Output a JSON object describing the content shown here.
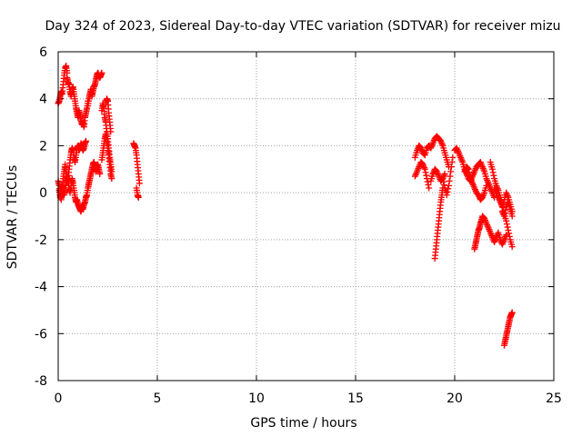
{
  "chart_data": {
    "type": "scatter",
    "title": "Day 324 of 2023, Sidereal Day-to-day VTEC variation (SDTVAR) for receiver mizu",
    "xlabel": "GPS time / hours",
    "ylabel": "SDTVAR / TECUs",
    "xlim": [
      0,
      25
    ],
    "ylim": [
      -8,
      6
    ],
    "x_ticks": [
      "0",
      "5",
      "10",
      "15",
      "20",
      "25"
    ],
    "y_ticks": [
      "-8",
      "-6",
      "-4",
      "-2",
      "0",
      "2",
      "4",
      "6"
    ],
    "grid": true,
    "marker": "+",
    "color": "#ff0000",
    "segments": [
      {
        "x": [
          0.0,
          0.05,
          0.1,
          0.15,
          0.2,
          0.25,
          0.3,
          0.35,
          0.4,
          0.45
        ],
        "y": [
          3.8,
          3.9,
          4.1,
          4.3,
          4.2,
          4.6,
          5.0,
          5.3,
          5.4,
          5.1
        ]
      },
      {
        "x": [
          0.45,
          0.5,
          0.55,
          0.6,
          0.65,
          0.7,
          0.75,
          0.8,
          0.85,
          0.9,
          0.95,
          1.0,
          1.05,
          1.1,
          1.15,
          1.2,
          1.25,
          1.3,
          1.35,
          1.4,
          1.45,
          1.5
        ],
        "y": [
          4.9,
          4.7,
          4.6,
          4.3,
          4.1,
          4.4,
          4.5,
          4.2,
          3.9,
          3.6,
          3.4,
          3.2,
          3.5,
          3.3,
          3.1,
          2.9,
          3.0,
          2.8,
          3.2,
          3.4,
          3.6,
          3.9
        ]
      },
      {
        "x": [
          1.5,
          1.55,
          1.6,
          1.65,
          1.7,
          1.75,
          1.8,
          1.85,
          1.9,
          1.95,
          2.0,
          2.05,
          2.1,
          2.15,
          2.2
        ],
        "y": [
          3.7,
          4.0,
          4.2,
          4.4,
          4.1,
          4.3,
          4.5,
          4.6,
          4.8,
          5.0,
          5.1,
          5.0,
          4.9,
          5.0,
          5.1
        ]
      },
      {
        "x": [
          0.0,
          0.05,
          0.1,
          0.15,
          0.2,
          0.25,
          0.3,
          0.35,
          0.4,
          0.45,
          0.5,
          0.55,
          0.6,
          0.65,
          0.7,
          0.75,
          0.8,
          0.85,
          0.9,
          0.95,
          1.0,
          1.05,
          1.1,
          1.15,
          1.2,
          1.25,
          1.3,
          1.35,
          1.4
        ],
        "y": [
          0.5,
          0.3,
          -0.1,
          -0.3,
          0.2,
          0.6,
          0.9,
          1.2,
          0.8,
          0.4,
          0.6,
          1.0,
          1.4,
          1.7,
          1.9,
          1.8,
          1.5,
          1.3,
          1.6,
          1.9,
          2.0,
          1.8,
          1.9,
          2.1,
          2.0,
          1.8,
          1.9,
          2.1,
          2.2
        ]
      },
      {
        "x": [
          0.05,
          0.1,
          0.15,
          0.2,
          0.25,
          0.3,
          0.35,
          0.4,
          0.45,
          0.5,
          0.55,
          0.6,
          0.65,
          0.7,
          0.75,
          0.8,
          0.85,
          0.9,
          0.95,
          1.0,
          1.05,
          1.1,
          1.15,
          1.2,
          1.25,
          1.3,
          1.35,
          1.4,
          1.45,
          1.5,
          1.55,
          1.6,
          1.65,
          1.7,
          1.75,
          1.8,
          1.85,
          1.9,
          1.95,
          2.0,
          2.05,
          2.1
        ],
        "y": [
          0.1,
          -0.2,
          0.0,
          0.3,
          0.2,
          -0.1,
          0.1,
          0.4,
          0.7,
          0.5,
          0.2,
          0.0,
          0.3,
          0.6,
          0.4,
          0.1,
          -0.2,
          -0.4,
          -0.3,
          -0.5,
          -0.6,
          -0.7,
          -0.8,
          -0.6,
          -0.7,
          -0.5,
          -0.4,
          -0.2,
          -0.1,
          0.2,
          0.4,
          0.6,
          0.8,
          1.0,
          1.2,
          1.3,
          1.1,
          0.9,
          1.1,
          1.2,
          1.0,
          0.8
        ]
      },
      {
        "x": [
          2.2,
          2.25,
          2.3,
          2.35,
          2.4,
          2.45,
          2.5,
          2.55,
          2.6,
          2.65,
          2.7
        ],
        "y": [
          3.5,
          3.8,
          3.6,
          3.2,
          3.0,
          2.6,
          2.3,
          1.9,
          1.5,
          1.2,
          0.9
        ]
      },
      {
        "x": [
          2.2,
          2.25,
          2.3,
          2.35,
          2.4,
          2.45,
          2.5,
          2.55,
          2.6,
          2.65,
          2.7
        ],
        "y": [
          1.4,
          1.7,
          2.0,
          2.3,
          2.5,
          2.2,
          1.9,
          1.6,
          1.2,
          0.8,
          0.6
        ]
      },
      {
        "x": [
          2.4,
          2.45,
          2.5,
          2.55,
          2.6,
          2.65
        ],
        "y": [
          3.8,
          4.0,
          3.9,
          3.4,
          3.0,
          2.6
        ]
      },
      {
        "x": [
          3.8,
          3.85,
          3.9,
          3.95,
          4.0,
          4.05,
          4.1
        ],
        "y": [
          2.1,
          2.0,
          1.9,
          1.6,
          1.2,
          0.8,
          0.4
        ]
      },
      {
        "x": [
          3.95,
          4.0,
          4.05
        ],
        "y": [
          0.2,
          -0.1,
          -0.2
        ]
      },
      {
        "x": [
          18.0,
          18.1,
          18.2,
          18.3,
          18.4,
          18.5,
          18.6,
          18.7,
          18.8,
          18.9,
          19.0,
          19.1,
          19.2,
          19.3,
          19.4,
          19.5,
          19.6,
          19.7
        ],
        "y": [
          1.5,
          1.8,
          2.0,
          1.9,
          1.7,
          1.6,
          1.9,
          2.0,
          1.9,
          2.1,
          2.3,
          2.4,
          2.3,
          2.2,
          2.0,
          1.7,
          1.4,
          1.1
        ]
      },
      {
        "x": [
          18.0,
          18.1,
          18.2,
          18.3,
          18.4,
          18.5,
          18.6,
          18.7
        ],
        "y": [
          0.7,
          0.9,
          1.1,
          1.3,
          1.2,
          1.0,
          0.6,
          0.2
        ]
      },
      {
        "x": [
          18.8,
          18.9,
          19.0,
          19.1,
          19.2,
          19.3,
          19.4,
          19.5
        ],
        "y": [
          0.5,
          0.8,
          1.0,
          0.9,
          0.7,
          0.5,
          0.6,
          0.8
        ]
      },
      {
        "x": [
          19.0,
          19.05,
          19.1,
          19.15,
          19.2,
          19.25,
          19.3,
          19.35,
          19.4
        ],
        "y": [
          -2.8,
          -2.4,
          -2.0,
          -1.6,
          -1.2,
          -0.8,
          -0.4,
          -0.1,
          0.2
        ]
      },
      {
        "x": [
          19.4,
          19.5,
          19.6,
          19.7,
          19.8,
          19.9
        ],
        "y": [
          0.6,
          0.2,
          -0.1,
          0.3,
          0.9,
          1.5
        ]
      },
      {
        "x": [
          20.0,
          20.1,
          20.2,
          20.3,
          20.4,
          20.5,
          20.6,
          20.7,
          20.8,
          20.9,
          21.0,
          21.1,
          21.2,
          21.3,
          21.4,
          21.5,
          21.6,
          21.7,
          21.8,
          21.9,
          22.0
        ],
        "y": [
          1.8,
          1.9,
          1.7,
          1.5,
          1.3,
          1.0,
          0.8,
          0.6,
          0.5,
          0.7,
          0.9,
          1.1,
          1.2,
          1.3,
          1.1,
          0.9,
          0.6,
          0.4,
          0.2,
          0.0,
          -0.2
        ]
      },
      {
        "x": [
          20.5,
          20.6,
          20.7,
          20.8,
          20.9,
          21.0,
          21.1,
          21.2,
          21.3,
          21.4,
          21.5,
          21.6
        ],
        "y": [
          0.9,
          1.1,
          1.0,
          0.6,
          0.4,
          0.2,
          0.0,
          -0.1,
          -0.3,
          -0.2,
          0.0,
          0.3
        ]
      },
      {
        "x": [
          21.0,
          21.05,
          21.1,
          21.15,
          21.2,
          21.25,
          21.3,
          21.35,
          21.4,
          21.5,
          21.6,
          21.7,
          21.8,
          21.9,
          22.0,
          22.1,
          22.2,
          22.3,
          22.4,
          22.5,
          22.6
        ],
        "y": [
          -2.4,
          -2.2,
          -2.0,
          -1.8,
          -1.6,
          -1.5,
          -1.3,
          -1.2,
          -1.0,
          -1.1,
          -1.3,
          -1.5,
          -1.7,
          -1.9,
          -2.1,
          -1.9,
          -1.7,
          -2.0,
          -2.2,
          -2.0,
          -1.8
        ]
      },
      {
        "x": [
          21.8,
          21.9,
          22.0,
          22.1,
          22.2,
          22.3,
          22.4,
          22.5,
          22.6,
          22.7,
          22.8,
          22.9
        ],
        "y": [
          1.3,
          1.0,
          0.6,
          0.3,
          0.1,
          -0.2,
          -0.5,
          -0.9,
          -1.2,
          -1.6,
          -2.0,
          -2.3
        ]
      },
      {
        "x": [
          22.0,
          22.1,
          22.2,
          22.3,
          22.4,
          22.5,
          22.6,
          22.7,
          22.8,
          22.9
        ],
        "y": [
          0.2,
          0.0,
          -0.2,
          -0.4,
          -0.6,
          -0.3,
          0.0,
          -0.2,
          -0.5,
          -0.8
        ]
      },
      {
        "x": [
          22.4,
          22.5,
          22.6,
          22.7,
          22.8,
          22.9
        ],
        "y": [
          -0.8,
          -1.0,
          -0.6,
          -0.4,
          -0.7,
          -1.0
        ]
      },
      {
        "x": [
          22.5,
          22.55,
          22.6,
          22.65,
          22.7,
          22.75,
          22.8,
          22.85,
          22.9
        ],
        "y": [
          -6.5,
          -6.3,
          -6.1,
          -5.9,
          -5.7,
          -5.5,
          -5.3,
          -5.2,
          -5.1
        ]
      }
    ]
  }
}
